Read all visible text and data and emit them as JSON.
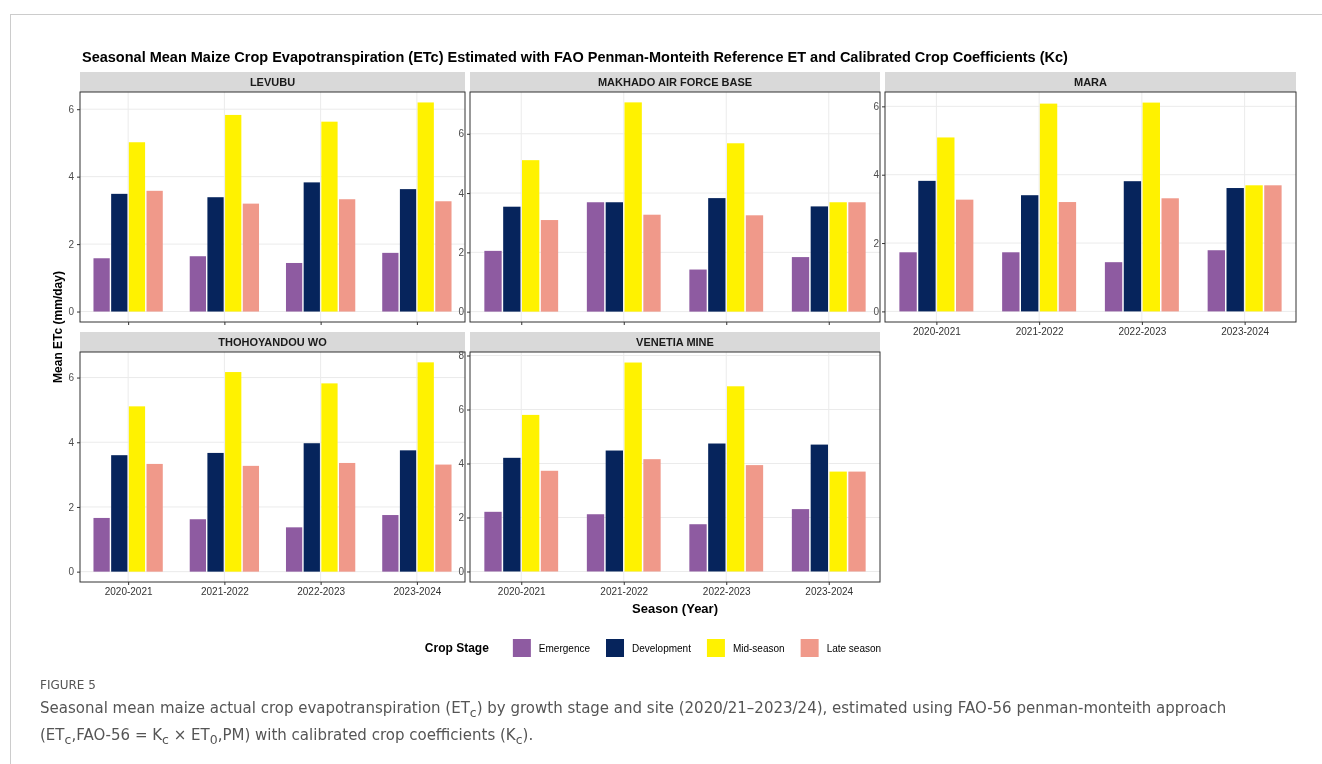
{
  "chart_data": [
    {
      "type": "bar",
      "title": "LEVUBU",
      "annotations": [
        "Seasonal Mean Maize Crop Evapotranspiration (ETc) Estimated with FAO Penman-Monteith Reference ET and Calibrated Crop Coefficients (Kc)"
      ],
      "categories": [
        null,
        null,
        null,
        null
      ],
      "ylim": [
        -0.31,
        6.51
      ],
      "yticks": [
        0,
        2,
        4,
        6
      ],
      "grid": true,
      "series": [
        {
          "color": "#8e5ba1",
          "values": [
            1.58,
            1.64,
            1.44,
            1.74
          ]
        },
        {
          "color": "#06245c",
          "values": [
            3.49,
            3.39,
            3.83,
            3.63
          ]
        },
        {
          "color": "#fff200",
          "values": [
            5.02,
            5.83,
            5.63,
            6.2
          ]
        },
        {
          "color": "#f0998a",
          "values": [
            3.58,
            3.2,
            3.33,
            3.27
          ]
        }
      ]
    },
    {
      "type": "bar",
      "title": "MAKHADO AIR FORCE BASE",
      "categories": [
        null,
        null,
        null,
        null
      ],
      "ylim": [
        -0.35,
        7.41
      ],
      "yticks": [
        0,
        2,
        4,
        6
      ],
      "grid": true,
      "series": [
        {
          "color": "#8e5ba1",
          "values": [
            2.05,
            3.69,
            1.42,
            1.84
          ]
        },
        {
          "color": "#06245c",
          "values": [
            3.54,
            3.69,
            3.83,
            3.55
          ]
        },
        {
          "color": "#fff200",
          "values": [
            5.11,
            7.06,
            5.68,
            3.69
          ]
        },
        {
          "color": "#f0998a",
          "values": [
            3.09,
            3.27,
            3.25,
            3.69
          ]
        }
      ]
    },
    {
      "type": "bar",
      "title": "MARA",
      "categories": [
        "2020-2021",
        "2021-2022",
        "2022-2023",
        "2023-2024"
      ],
      "ylim": [
        -0.31,
        6.42
      ],
      "yticks": [
        0,
        2,
        4,
        6
      ],
      "grid": true,
      "series": [
        {
          "color": "#8e5ba1",
          "values": [
            1.73,
            1.73,
            1.44,
            1.79
          ]
        },
        {
          "color": "#06245c",
          "values": [
            3.82,
            3.4,
            3.81,
            3.61
          ]
        },
        {
          "color": "#fff200",
          "values": [
            5.09,
            6.08,
            6.11,
            3.69
          ]
        },
        {
          "color": "#f0998a",
          "values": [
            3.27,
            3.2,
            3.31,
            3.69
          ]
        }
      ]
    },
    {
      "type": "bar",
      "title": "THOHOYANDOU WO",
      "ylabel": "Mean ETc (mm/day)",
      "categories": [
        "2020-2021",
        "2021-2022",
        "2022-2023",
        "2023-2024"
      ],
      "ylim": [
        -0.32,
        6.79
      ],
      "yticks": [
        0,
        2,
        4,
        6
      ],
      "grid": true,
      "series": [
        {
          "color": "#8e5ba1",
          "values": [
            1.66,
            1.62,
            1.37,
            1.75
          ]
        },
        {
          "color": "#06245c",
          "values": [
            3.6,
            3.67,
            3.97,
            3.75
          ]
        },
        {
          "color": "#fff200",
          "values": [
            5.11,
            6.17,
            5.82,
            6.47
          ]
        },
        {
          "color": "#f0998a",
          "values": [
            3.33,
            3.27,
            3.36,
            3.31
          ]
        }
      ]
    },
    {
      "type": "bar",
      "title": "VENETIA MINE",
      "xlabel": "Season (Year)",
      "legend": "bottom",
      "legend_title": "Crop Stage",
      "annotations": [
        "FIGURE 5",
        "Seasonal mean maize actual crop evapotranspiration (ET$_{c}$) by growth stage and site (2020/21–2023/24), estimated using FAO-56 penman-monteith approach (ET$_{c}$,FAO-56 = K$_{c}$ × ET$_{0}$,PM) with calibrated crop coefficients (K$_{c}$)."
      ],
      "categories": [
        "2020-2021",
        "2021-2022",
        "2022-2023",
        "2023-2024"
      ],
      "ylim": [
        -0.39,
        8.13
      ],
      "yticks": [
        0,
        2,
        4,
        6,
        8
      ],
      "grid": true,
      "series": [
        {
          "name": "Emergence",
          "color": "#8e5ba1",
          "values": [
            2.21,
            2.12,
            1.75,
            2.31
          ]
        },
        {
          "name": "Development",
          "color": "#06245c",
          "values": [
            4.21,
            4.48,
            4.74,
            4.7
          ]
        },
        {
          "name": "Mid-season",
          "color": "#fff200",
          "values": [
            5.8,
            7.74,
            6.86,
            3.7
          ]
        },
        {
          "name": "Late season",
          "color": "#f0998a",
          "values": [
            3.73,
            4.16,
            3.94,
            3.7
          ]
        }
      ]
    }
  ]
}
